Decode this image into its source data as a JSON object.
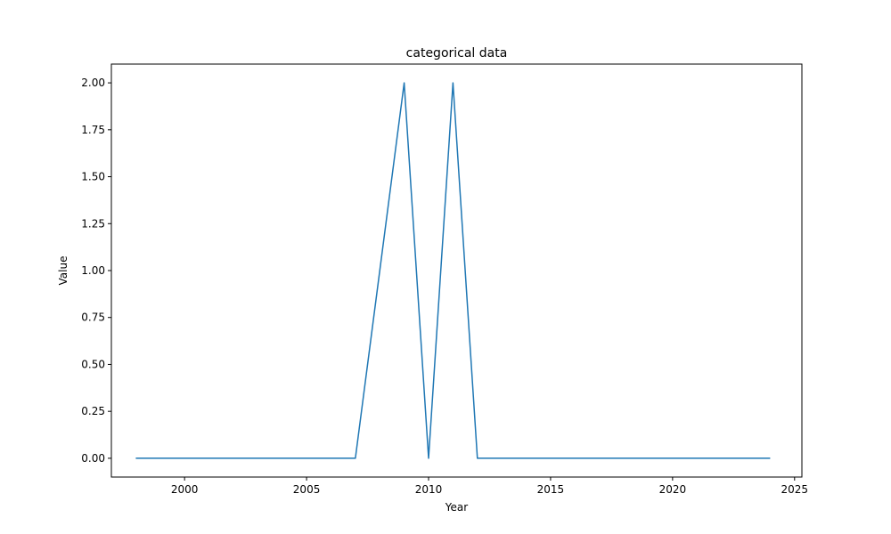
{
  "chart_data": {
    "type": "line",
    "title": "categorical data",
    "xlabel": "Year",
    "ylabel": "Value",
    "xlim": [
      1997,
      2025.3
    ],
    "ylim": [
      -0.1,
      2.1
    ],
    "xticks": [
      2000,
      2005,
      2010,
      2015,
      2020,
      2025
    ],
    "yticks": [
      0.0,
      0.25,
      0.5,
      0.75,
      1.0,
      1.25,
      1.5,
      1.75,
      2.0
    ],
    "ytick_labels": [
      "0.00",
      "0.25",
      "0.50",
      "0.75",
      "1.00",
      "1.25",
      "1.50",
      "1.75",
      "2.00"
    ],
    "grid": false,
    "series": [
      {
        "color": "#1f77b4",
        "x": [
          1998,
          1999,
          2000,
          2001,
          2002,
          2003,
          2004,
          2005,
          2006,
          2007,
          2008,
          2009,
          2010,
          2011,
          2012,
          2013,
          2014,
          2015,
          2016,
          2017,
          2018,
          2019,
          2020,
          2021,
          2022,
          2023,
          2024
        ],
        "y": [
          0,
          0,
          0,
          0,
          0,
          0,
          0,
          0,
          0,
          0,
          1,
          2,
          0,
          2,
          0,
          0,
          0,
          0,
          0,
          0,
          0,
          0,
          0,
          0,
          0,
          0,
          0
        ]
      }
    ]
  }
}
